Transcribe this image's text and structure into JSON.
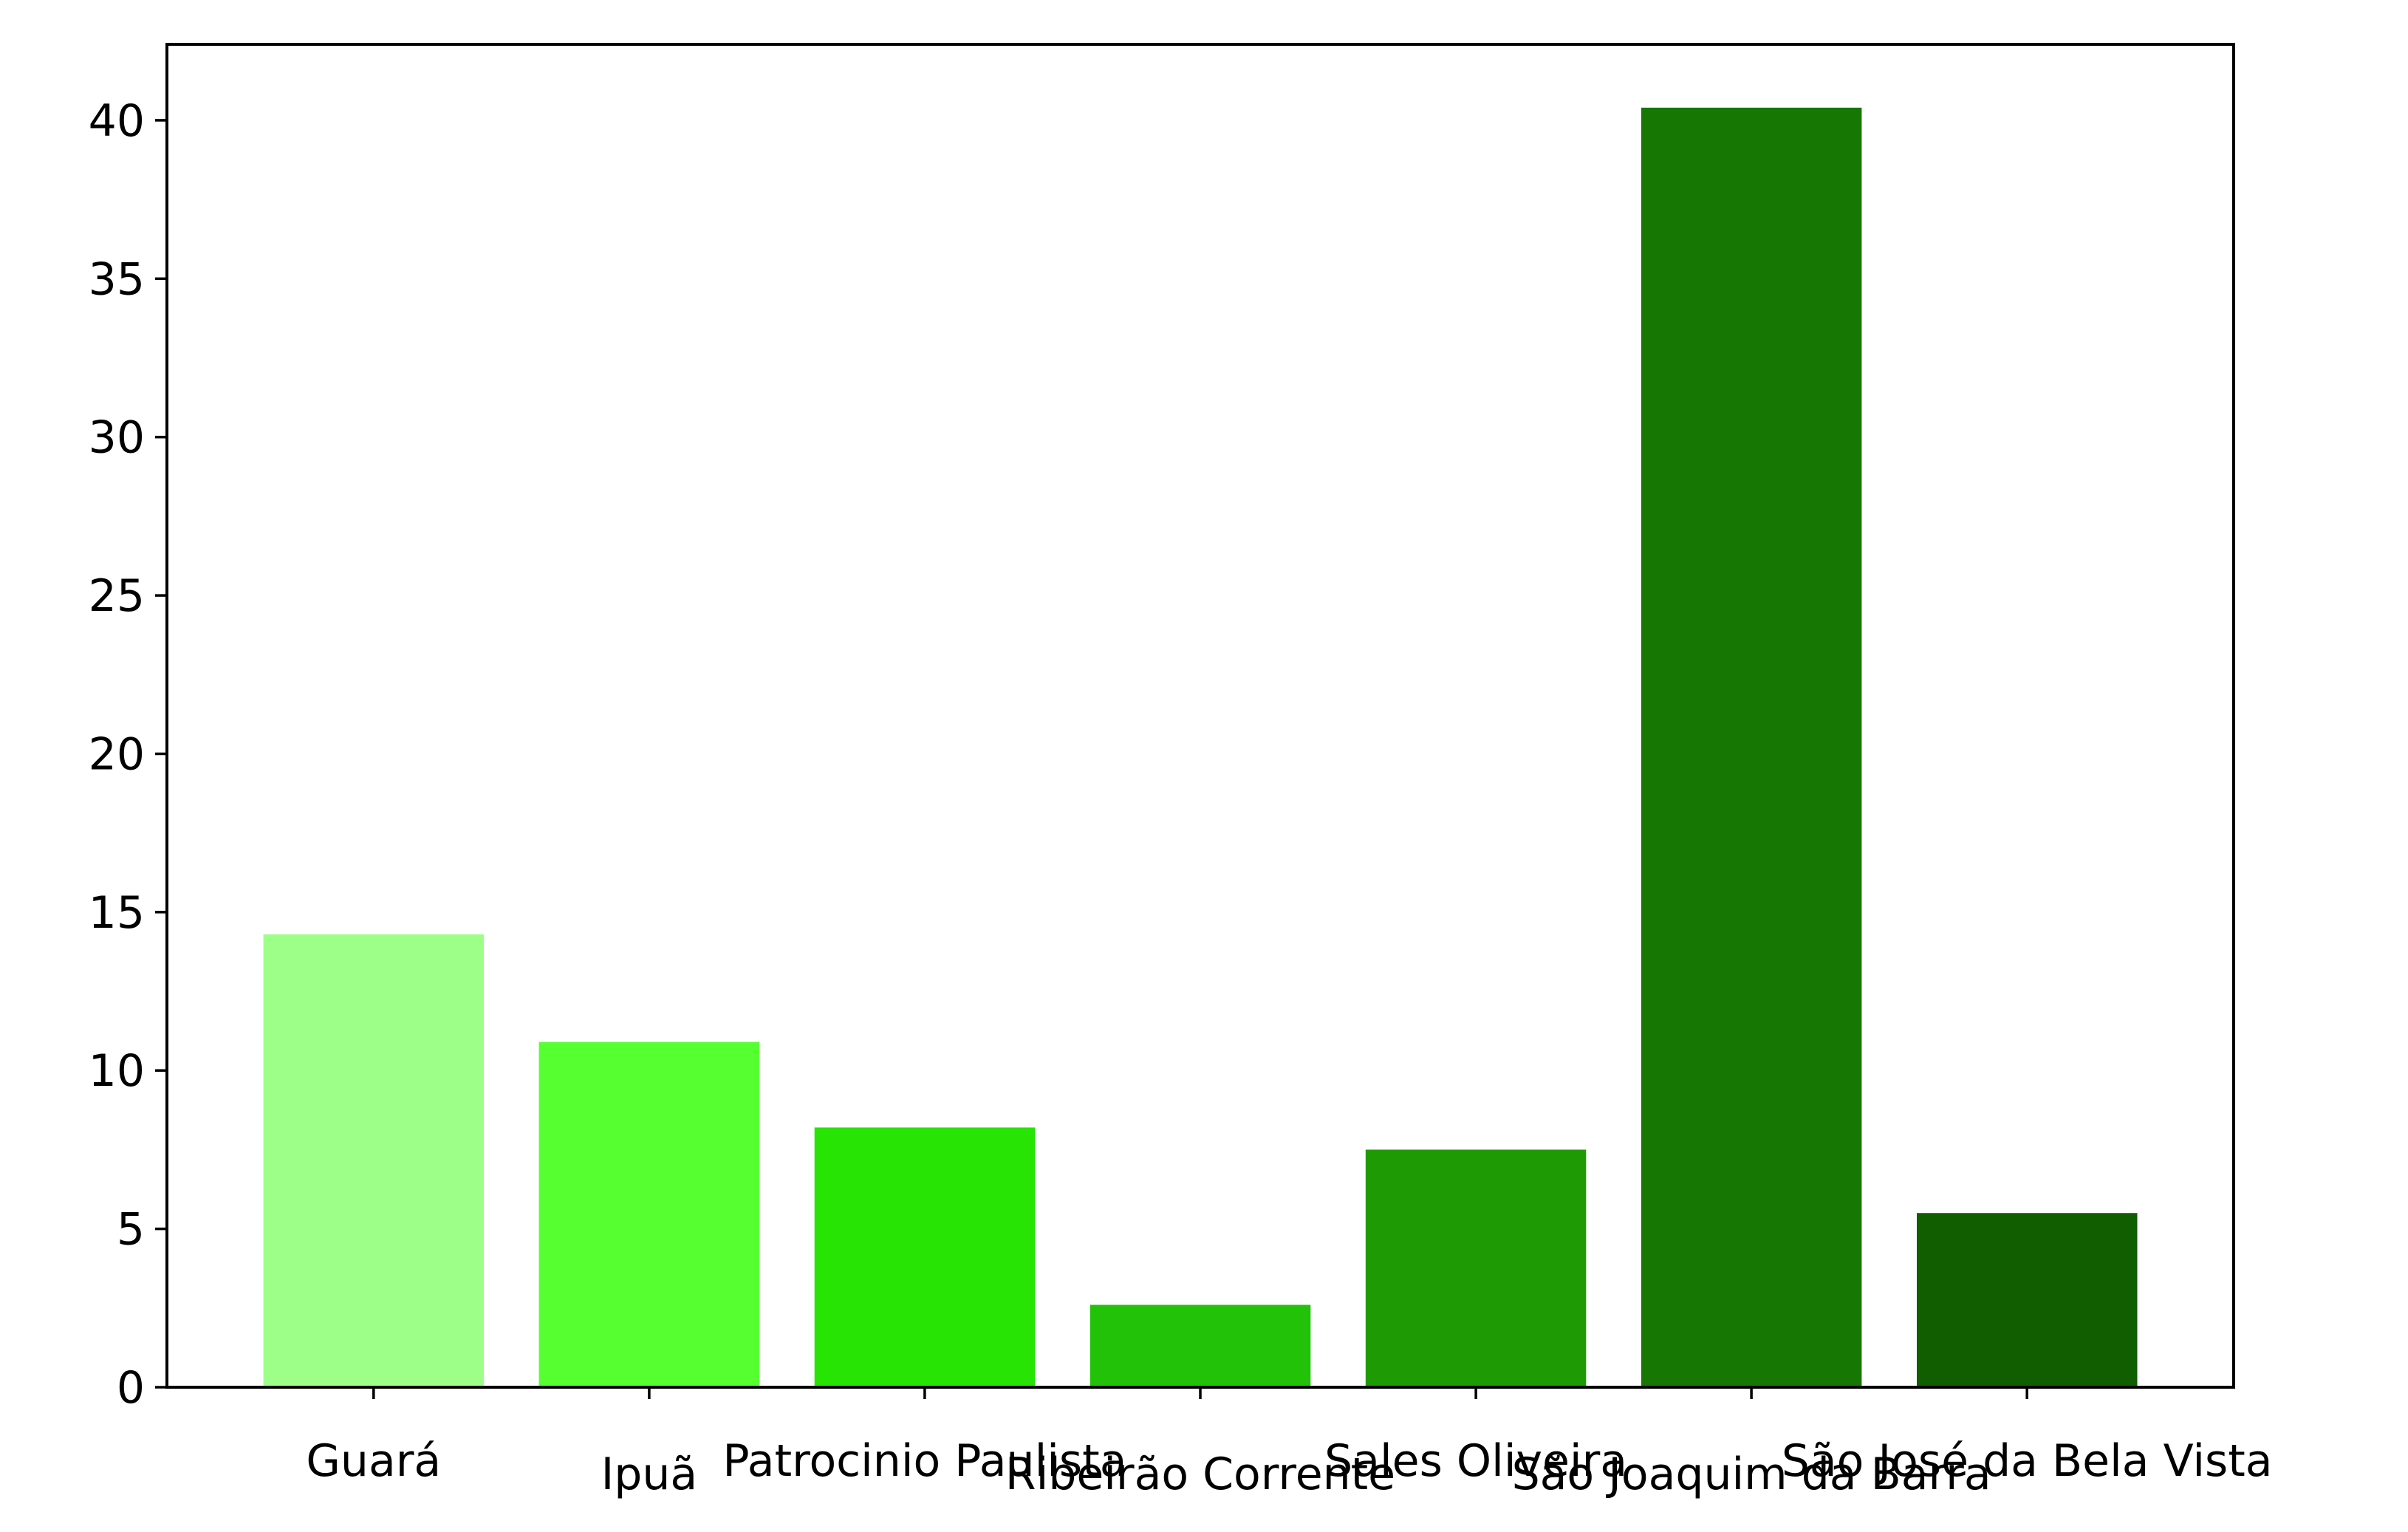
{
  "chart_data": {
    "type": "bar",
    "title": "",
    "xlabel": "",
    "ylabel": "",
    "categories": [
      "Guará",
      "Ipuã",
      "Patrocinio Paulista",
      "Ribeirão Corrente",
      "Sales Oliveira",
      "São Joaquim da Barra",
      "São José da Bela Vista"
    ],
    "values": [
      14.3,
      10.9,
      8.2,
      2.6,
      7.5,
      40.4,
      5.5
    ],
    "colors": [
      "#9eff88",
      "#55ff30",
      "#28e404",
      "#22c208",
      "#1e9a04",
      "#167802",
      "#115e00"
    ],
    "ylim": [
      0,
      42.4
    ],
    "yticks": [
      0,
      5,
      10,
      15,
      20,
      25,
      30,
      35,
      40
    ],
    "grid": false,
    "legend": "none"
  }
}
